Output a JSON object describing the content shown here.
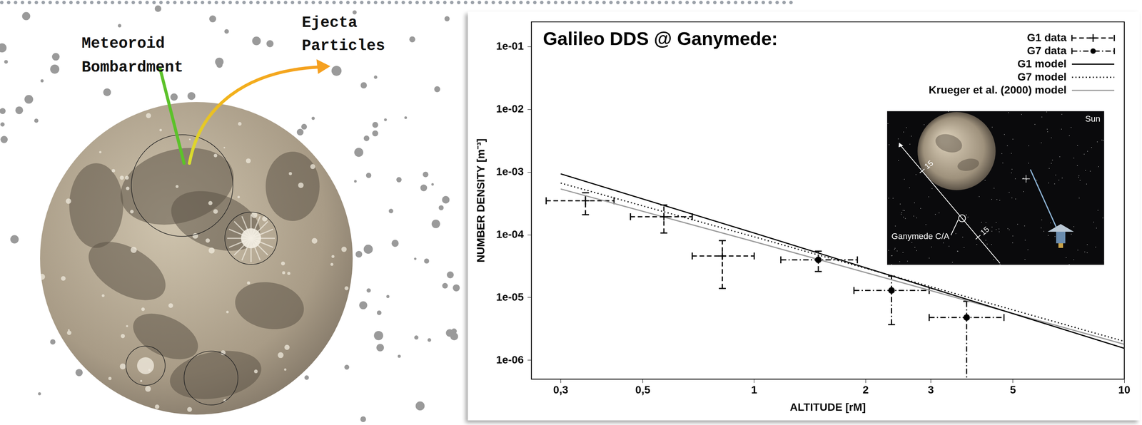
{
  "illustration": {
    "labels": [
      "Meteoroid Bombardment",
      "Ejecta Particles"
    ]
  },
  "chart_data": {
    "type": "scatter",
    "title": "Galileo DDS @ Ganymede:",
    "x_label": "ALTITUDE [rM]",
    "y_label": "NUMBER DENSITY [m⁻³]",
    "log": true,
    "grid": false,
    "legend": "upper right",
    "xlim": [
      0.25,
      10
    ],
    "ylim": [
      5e-07,
      0.25
    ],
    "xticks": [
      {
        "value": 0.3,
        "label": "0,3"
      },
      {
        "value": 0.5,
        "label": "0,5"
      },
      1,
      2,
      3,
      5,
      10
    ],
    "yticks": [
      {
        "value": 1e-06,
        "label": "1e-06"
      },
      {
        "value": 1e-05,
        "label": "1e-05"
      },
      {
        "value": 0.0001,
        "label": "1e-04"
      },
      {
        "value": 0.001,
        "label": "1e-03"
      },
      {
        "value": 0.01,
        "label": "1e-02"
      },
      {
        "value": 0.1,
        "label": "1e-01"
      }
    ],
    "series": [
      {
        "name": "G1 data",
        "type": "scatter",
        "color": "#000000",
        "marker": "plus",
        "line_style": "dashed",
        "x": [
          0.35,
          0.57,
          0.82
        ],
        "values": [
          0.00035,
          0.000195,
          4.6e-05
        ],
        "x_range": [
          [
            0.274,
            0.418
          ],
          [
            0.463,
            0.68
          ],
          [
            0.68,
            1.0
          ]
        ],
        "y_range": [
          [
            0.00021,
            0.00047
          ],
          [
            0.000107,
            0.0003
          ],
          [
            1.4e-05,
            8.1e-05
          ]
        ]
      },
      {
        "name": "G7 data",
        "type": "scatter",
        "color": "#000000",
        "marker": "circle",
        "line_style": "dashdot",
        "x": [
          1.49,
          2.35,
          3.75
        ],
        "values": [
          4e-05,
          1.3e-05,
          4.8e-06
        ],
        "x_range": [
          [
            1.18,
            1.9
          ],
          [
            1.86,
            2.97
          ],
          [
            2.97,
            4.73
          ]
        ],
        "y_range": [
          [
            2.6e-05,
            5.5e-05
          ],
          [
            3.7e-06,
            2.2e-05
          ],
          [
            4e-07,
            8.7e-06
          ]
        ]
      },
      {
        "name": "G1 model",
        "type": "line",
        "color": "#000000",
        "line_style": "solid",
        "x": [
          0.3,
          1,
          10
        ],
        "values": [
          0.00094,
          0.000107,
          1.55e-06
        ]
      },
      {
        "name": "G7 model",
        "type": "line",
        "color": "#000000",
        "line_style": "dotted",
        "x": [
          0.3,
          1,
          10
        ],
        "values": [
          0.00067,
          9.3e-05,
          2e-06
        ]
      },
      {
        "name": "Krueger et al. (2000) model",
        "type": "line",
        "color": "#9a9a9a",
        "line_style": "solid",
        "x": [
          0.3,
          1,
          10
        ],
        "values": [
          0.00054,
          7.8e-05,
          1.8e-06
        ]
      }
    ]
  },
  "inset": {
    "sun": "Sun",
    "closest_approach": "Ganymede C/A",
    "distance_ticks": [
      15,
      15
    ]
  }
}
